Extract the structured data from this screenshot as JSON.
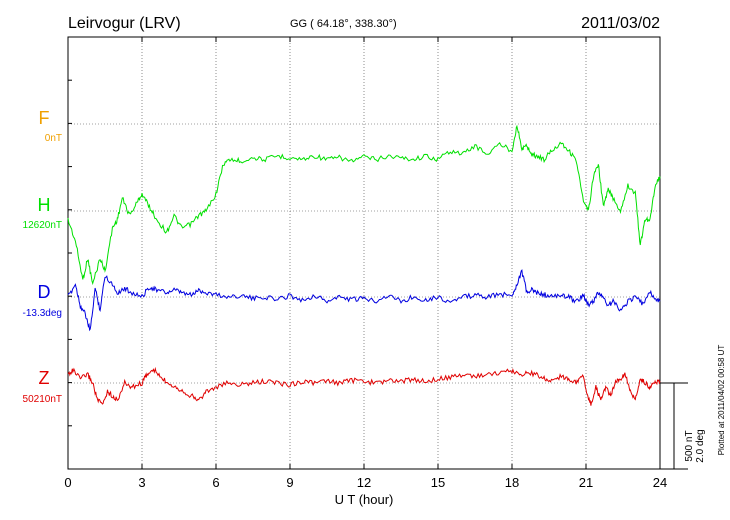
{
  "header": {
    "station": "Leirvogur (LRV)",
    "coords": "GG ( 64.18°, 338.30°)",
    "date": "2011/03/02"
  },
  "xaxis": {
    "label": "U T (hour)",
    "ticks": [
      "0",
      "3",
      "6",
      "9",
      "12",
      "15",
      "18",
      "21",
      "24"
    ]
  },
  "scale_bar": {
    "nt": "500 nT",
    "deg": "2.0 deg"
  },
  "plotted_note": "Plotted at 2011/04/02 00:58 UT",
  "chart_data": {
    "type": "line",
    "x_range": [
      0,
      24
    ],
    "x_unit": "hour UT",
    "grid": true,
    "series": [
      {
        "name": "F",
        "baseline": "0nT",
        "color": "#f0a000",
        "x": [],
        "y": []
      },
      {
        "name": "H",
        "baseline": "12620nT",
        "color": "#00e000",
        "x": [
          0,
          0.3,
          0.6,
          0.8,
          1.0,
          1.3,
          1.5,
          1.8,
          2.0,
          2.2,
          2.5,
          2.8,
          3.0,
          3.3,
          3.6,
          4.0,
          4.3,
          4.6,
          5.0,
          5.3,
          5.6,
          6.0,
          6.3,
          6.6,
          7.0,
          7.5,
          8.0,
          8.5,
          9.0,
          9.5,
          10.0,
          10.5,
          11.0,
          11.5,
          12.0,
          12.5,
          13.0,
          13.5,
          14.0,
          14.5,
          15.0,
          15.5,
          16.0,
          16.5,
          17.0,
          17.5,
          18.0,
          18.2,
          18.4,
          18.6,
          18.8,
          19.0,
          19.3,
          19.6,
          20.0,
          20.3,
          20.6,
          20.9,
          21.1,
          21.3,
          21.5,
          21.7,
          21.9,
          22.1,
          22.4,
          22.7,
          23.0,
          23.2,
          23.4,
          23.6,
          23.8,
          24.0
        ],
        "y": [
          -10,
          -35,
          -80,
          -55,
          -85,
          -55,
          -70,
          -20,
          -10,
          15,
          -5,
          10,
          20,
          5,
          -10,
          -25,
          -5,
          -20,
          -15,
          -5,
          0,
          20,
          55,
          60,
          58,
          62,
          60,
          64,
          62,
          60,
          64,
          60,
          62,
          58,
          63,
          60,
          64,
          62,
          60,
          64,
          60,
          70,
          66,
          76,
          66,
          78,
          70,
          100,
          72,
          76,
          66,
          64,
          60,
          70,
          80,
          70,
          60,
          10,
          0,
          40,
          55,
          5,
          25,
          15,
          0,
          30,
          20,
          -40,
          -10,
          -10,
          30,
          40
        ]
      },
      {
        "name": "D",
        "baseline": "-13.3deg",
        "color": "#0000e0",
        "x": [
          0,
          0.3,
          0.5,
          0.7,
          0.9,
          1.1,
          1.3,
          1.5,
          1.8,
          2.0,
          2.3,
          2.6,
          3.0,
          3.3,
          3.6,
          4.0,
          4.3,
          4.6,
          5.0,
          5.3,
          5.6,
          6.0,
          6.5,
          7.0,
          7.5,
          8.0,
          8.5,
          9.0,
          9.5,
          10.0,
          10.5,
          11.0,
          11.5,
          12.0,
          12.5,
          13.0,
          13.5,
          14.0,
          14.5,
          15.0,
          15.5,
          16.0,
          16.5,
          17.0,
          17.5,
          18.0,
          18.2,
          18.4,
          18.6,
          18.8,
          19.0,
          19.3,
          19.6,
          20.0,
          20.3,
          20.6,
          20.9,
          21.1,
          21.3,
          21.5,
          21.7,
          21.9,
          22.1,
          22.4,
          22.7,
          23.0,
          23.3,
          23.6,
          23.8,
          24.0
        ],
        "y": [
          0,
          15,
          -10,
          -20,
          -40,
          10,
          -15,
          25,
          15,
          5,
          10,
          5,
          0,
          12,
          8,
          5,
          8,
          5,
          2,
          8,
          5,
          3,
          0,
          2,
          -2,
          0,
          -3,
          2,
          -4,
          2,
          -5,
          0,
          -3,
          -2,
          -4,
          2,
          -5,
          0,
          -3,
          0,
          -6,
          0,
          2,
          0,
          3,
          2,
          15,
          30,
          5,
          8,
          5,
          3,
          0,
          2,
          0,
          -5,
          2,
          -10,
          -5,
          5,
          0,
          -10,
          -5,
          -15,
          -5,
          0,
          -8,
          5,
          -2,
          -5
        ]
      },
      {
        "name": "Z",
        "baseline": "50210nT",
        "color": "#e00000",
        "x": [
          0,
          0.2,
          0.5,
          0.8,
          1.0,
          1.2,
          1.4,
          1.6,
          1.8,
          2.0,
          2.3,
          2.6,
          3.0,
          3.2,
          3.5,
          3.8,
          4.1,
          4.4,
          4.7,
          5.0,
          5.3,
          5.6,
          6.0,
          6.5,
          7.0,
          7.5,
          8.0,
          8.5,
          9.0,
          9.5,
          10.0,
          10.5,
          11.0,
          11.5,
          12.0,
          12.5,
          13.0,
          13.5,
          14.0,
          14.5,
          15.0,
          15.5,
          16.0,
          16.5,
          17.0,
          17.5,
          18.0,
          18.3,
          18.6,
          19.0,
          19.3,
          19.6,
          20.0,
          20.3,
          20.6,
          20.9,
          21.0,
          21.2,
          21.4,
          21.6,
          21.8,
          22.0,
          22.2,
          22.4,
          22.6,
          22.8,
          23.0,
          23.2,
          23.4,
          23.6,
          23.8,
          24.0
        ],
        "y": [
          10,
          15,
          5,
          10,
          0,
          -20,
          -25,
          -10,
          -15,
          -20,
          0,
          -5,
          0,
          10,
          15,
          5,
          0,
          -5,
          -10,
          -15,
          -20,
          -10,
          -5,
          0,
          -2,
          0,
          2,
          0,
          -2,
          2,
          0,
          2,
          0,
          3,
          2,
          0,
          3,
          2,
          4,
          2,
          5,
          6,
          10,
          8,
          10,
          12,
          14,
          10,
          12,
          10,
          5,
          3,
          8,
          5,
          0,
          10,
          -10,
          -25,
          -5,
          -20,
          -5,
          -15,
          0,
          5,
          10,
          -10,
          -20,
          5,
          0,
          -5,
          0,
          2
        ]
      }
    ]
  }
}
